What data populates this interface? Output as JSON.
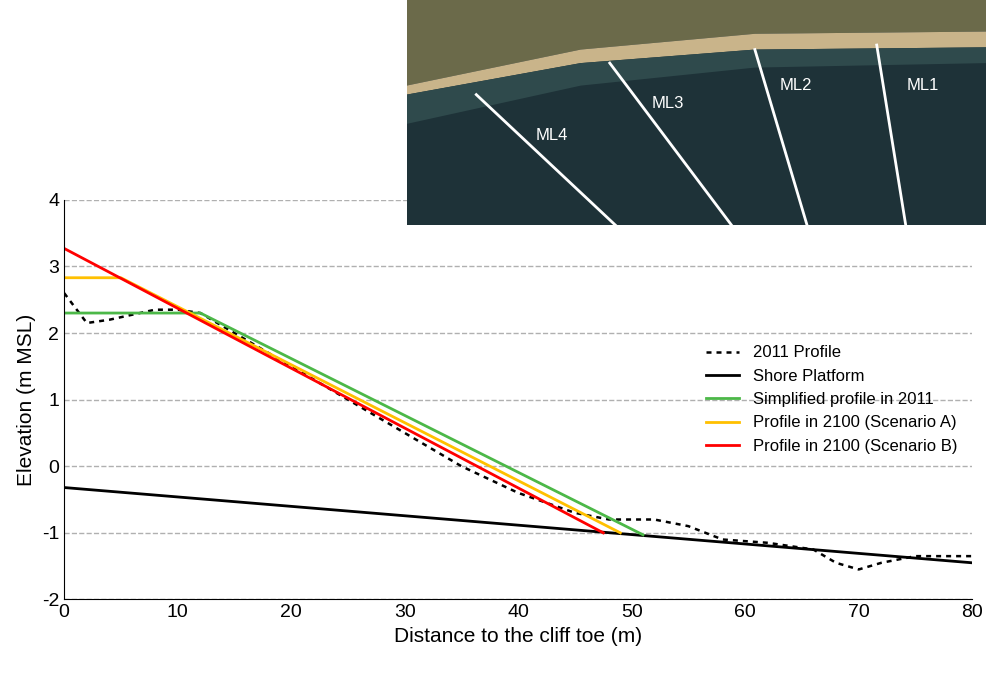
{
  "chart_data": {
    "type": "line",
    "x_label": "Distance to the cliff toe (m)",
    "y_label": "Elevation (m MSL)",
    "xlim": [
      0,
      80
    ],
    "xticks": [
      0,
      10,
      20,
      30,
      40,
      50,
      60,
      70,
      80
    ],
    "ylim": [
      -2,
      4
    ],
    "yticks": [
      -2,
      -1,
      0,
      1,
      2,
      3,
      4
    ],
    "grid": true,
    "legend": "center right",
    "series": [
      {
        "name": "2011 Profile",
        "color": "#000000",
        "line_style": "dotted",
        "x": [
          0,
          2,
          4,
          8,
          10,
          12,
          15,
          20,
          25,
          30,
          35,
          40,
          45,
          48,
          52,
          55,
          58,
          62,
          66,
          68,
          70,
          72,
          75,
          80
        ],
        "values": [
          2.6,
          2.15,
          2.2,
          2.35,
          2.35,
          2.3,
          2.0,
          1.5,
          1.0,
          0.5,
          0.0,
          -0.4,
          -0.7,
          -0.8,
          -0.8,
          -0.9,
          -1.1,
          -1.15,
          -1.25,
          -1.45,
          -1.55,
          -1.45,
          -1.35,
          -1.35
        ]
      },
      {
        "name": "Shore Platform",
        "color": "#000000",
        "line_style": "solid",
        "x": [
          0,
          80
        ],
        "values": [
          -0.32,
          -1.45
        ]
      },
      {
        "name": "Simplified profile in 2011",
        "color": "#4cb848",
        "line_style": "solid",
        "x": [
          0,
          12,
          51
        ],
        "values": [
          2.3,
          2.3,
          -1.03
        ]
      },
      {
        "name": "Profile in 2100 (Scenario A)",
        "color": "#ffc000",
        "line_style": "solid",
        "x": [
          0,
          5,
          49
        ],
        "values": [
          2.83,
          2.83,
          -1.0
        ]
      },
      {
        "name": "Profile in 2100 (Scenario B)",
        "color": "#ff0000",
        "line_style": "solid",
        "x": [
          0,
          47.5
        ],
        "values": [
          3.27,
          -1.0
        ]
      }
    ]
  },
  "inset": {
    "labels": [
      "ML4",
      "ML3",
      "ML2",
      "ML1"
    ]
  }
}
